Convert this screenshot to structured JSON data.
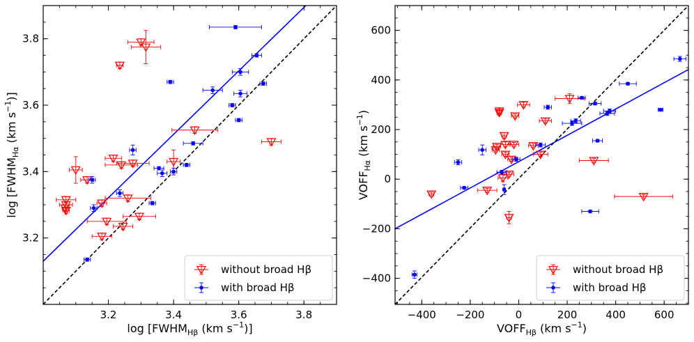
{
  "chart_data": [
    {
      "type": "scatter",
      "xlabel_prefix": "log [FWHM",
      "xlabel_sub": "Hβ",
      "xlabel_suffix": " (km s",
      "xlabel_sup": "−1",
      "xlabel_end": ")]",
      "ylabel_prefix": "log [FWHM",
      "ylabel_sub": "Hα",
      "ylabel_suffix": " (km s",
      "ylabel_sup": "−1",
      "ylabel_end": ")]",
      "xlim": [
        3.0,
        3.9
      ],
      "ylim": [
        3.0,
        3.9
      ],
      "xticks": [
        3.2,
        3.4,
        3.6,
        3.8
      ],
      "yticks": [
        3.2,
        3.4,
        3.6,
        3.8
      ],
      "xticklabels": [
        "3.2",
        "3.4",
        "3.6",
        "3.8"
      ],
      "yticklabels": [
        "3.2",
        "3.4",
        "3.6",
        "3.8"
      ],
      "legend_position": "bottom-right",
      "series": [
        {
          "name": "without broad Hβ",
          "label_text": "without broad H",
          "label_greek": "β",
          "color": "#ff0000",
          "marker": "triangle-down-open",
          "points": [
            {
              "x": 3.07,
              "y": 3.315,
              "xerr": 0.03,
              "yerr": 0.01
            },
            {
              "x": 3.07,
              "y": 3.3,
              "xerr": 0.02,
              "yerr": 0.01
            },
            {
              "x": 3.068,
              "y": 3.29,
              "xerr": 0.01,
              "yerr": 0.01
            },
            {
              "x": 3.07,
              "y": 3.283,
              "xerr": 0.01,
              "yerr": 0.01
            },
            {
              "x": 3.1,
              "y": 3.405,
              "xerr": 0.02,
              "yerr": 0.04
            },
            {
              "x": 3.135,
              "y": 3.375,
              "xerr": 0.02,
              "yerr": 0.01
            },
            {
              "x": 3.18,
              "y": 3.305,
              "xerr": 0.015,
              "yerr": 0.01
            },
            {
              "x": 3.18,
              "y": 3.205,
              "xerr": 0.03,
              "yerr": 0.01
            },
            {
              "x": 3.195,
              "y": 3.25,
              "xerr": 0.06,
              "yerr": 0.01
            },
            {
              "x": 3.215,
              "y": 3.44,
              "xerr": 0.025,
              "yerr": 0.01
            },
            {
              "x": 3.24,
              "y": 3.42,
              "xerr": 0.05,
              "yerr": 0.01
            },
            {
              "x": 3.245,
              "y": 3.235,
              "xerr": 0.03,
              "yerr": 0.01
            },
            {
              "x": 3.235,
              "y": 3.72,
              "xerr": 0.01,
              "yerr": 0.01
            },
            {
              "x": 3.26,
              "y": 3.32,
              "xerr": 0.07,
              "yerr": 0.01
            },
            {
              "x": 3.275,
              "y": 3.425,
              "xerr": 0.05,
              "yerr": 0.01
            },
            {
              "x": 3.295,
              "y": 3.265,
              "xerr": 0.05,
              "yerr": 0.01
            },
            {
              "x": 3.3,
              "y": 3.79,
              "xerr": 0.04,
              "yerr": 0.01
            },
            {
              "x": 3.315,
              "y": 3.775,
              "xerr": 0.045,
              "yerr": 0.05
            },
            {
              "x": 3.4,
              "y": 3.43,
              "xerr": 0.02,
              "yerr": 0.035
            },
            {
              "x": 3.465,
              "y": 3.525,
              "xerr": 0.07,
              "yerr": 0.01
            },
            {
              "x": 3.7,
              "y": 3.49,
              "xerr": 0.03,
              "yerr": 0.01
            }
          ]
        },
        {
          "name": "with broad Hβ",
          "label_text": "with broad H",
          "label_greek": "β",
          "color": "#0000ff",
          "marker": "circle",
          "points": [
            {
              "x": 3.135,
              "y": 3.135,
              "xerr": 0.01,
              "yerr": 0.005
            },
            {
              "x": 3.15,
              "y": 3.375,
              "xerr": 0.01,
              "yerr": 0.01
            },
            {
              "x": 3.155,
              "y": 3.29,
              "xerr": 0.01,
              "yerr": 0.01
            },
            {
              "x": 3.235,
              "y": 3.335,
              "xerr": 0.01,
              "yerr": 0.01
            },
            {
              "x": 3.275,
              "y": 3.465,
              "xerr": 0.01,
              "yerr": 0.015
            },
            {
              "x": 3.335,
              "y": 3.305,
              "xerr": 0.01,
              "yerr": 0.005
            },
            {
              "x": 3.355,
              "y": 3.41,
              "xerr": 0.015,
              "yerr": 0.005
            },
            {
              "x": 3.365,
              "y": 3.395,
              "xerr": 0.015,
              "yerr": 0.01
            },
            {
              "x": 3.39,
              "y": 3.67,
              "xerr": 0.01,
              "yerr": 0.005
            },
            {
              "x": 3.4,
              "y": 3.4,
              "xerr": 0.01,
              "yerr": 0.01
            },
            {
              "x": 3.44,
              "y": 3.42,
              "xerr": 0.01,
              "yerr": 0.005
            },
            {
              "x": 3.46,
              "y": 3.485,
              "xerr": 0.03,
              "yerr": 0.005
            },
            {
              "x": 3.52,
              "y": 3.645,
              "xerr": 0.03,
              "yerr": 0.01
            },
            {
              "x": 3.58,
              "y": 3.6,
              "xerr": 0.01,
              "yerr": 0.005
            },
            {
              "x": 3.59,
              "y": 3.835,
              "xerr": 0.08,
              "yerr": 0.005
            },
            {
              "x": 3.6,
              "y": 3.555,
              "xerr": 0.01,
              "yerr": 0.005
            },
            {
              "x": 3.605,
              "y": 3.635,
              "xerr": 0.02,
              "yerr": 0.01
            },
            {
              "x": 3.605,
              "y": 3.7,
              "xerr": 0.025,
              "yerr": 0.01
            },
            {
              "x": 3.655,
              "y": 3.75,
              "xerr": 0.015,
              "yerr": 0.005
            },
            {
              "x": 3.675,
              "y": 3.665,
              "xerr": 0.01,
              "yerr": 0.005
            }
          ]
        }
      ],
      "lines": [
        {
          "name": "best-fit",
          "color": "#0000ff",
          "style": "solid",
          "from": [
            3.0,
            3.13
          ],
          "to": [
            3.9,
            3.99
          ]
        },
        {
          "name": "one-to-one",
          "color": "#000000",
          "style": "dashed",
          "from": [
            3.0,
            3.0
          ],
          "to": [
            3.9,
            3.9
          ]
        }
      ]
    },
    {
      "type": "scatter",
      "xlabel_prefix": "VOFF",
      "xlabel_sub": "Hβ",
      "xlabel_suffix": " (km s",
      "xlabel_sup": "−1",
      "xlabel_end": ")",
      "ylabel_prefix": "VOFF",
      "ylabel_sub": "Hα",
      "ylabel_suffix": " (km s",
      "ylabel_sup": "−1",
      "ylabel_end": ")",
      "xlim": [
        -510,
        700
      ],
      "ylim": [
        -505,
        700
      ],
      "xticks": [
        -400,
        -200,
        0,
        200,
        400,
        600
      ],
      "yticks": [
        -400,
        -200,
        0,
        200,
        400,
        600
      ],
      "xticklabels": [
        "−400",
        "−200",
        "0",
        "200",
        "400",
        "600"
      ],
      "yticklabels": [
        "−400",
        "−200",
        "0",
        "200",
        "400",
        "600"
      ],
      "legend_position": "bottom-right",
      "series": [
        {
          "name": "without broad Hβ",
          "label_text": "without broad H",
          "label_greek": "β",
          "color": "#ff0000",
          "marker": "triangle-down-open",
          "points": [
            {
              "x": -360,
              "y": -60,
              "xerr": 10,
              "yerr": 8
            },
            {
              "x": -130,
              "y": -45,
              "xerr": 40,
              "yerr": 8
            },
            {
              "x": -95,
              "y": 118,
              "xerr": 15,
              "yerr": 8
            },
            {
              "x": -90,
              "y": 132,
              "xerr": 15,
              "yerr": 8
            },
            {
              "x": -80,
              "y": 268,
              "xerr": 10,
              "yerr": 10
            },
            {
              "x": -80,
              "y": 275,
              "xerr": 10,
              "yerr": 10
            },
            {
              "x": -65,
              "y": 5,
              "xerr": 20,
              "yerr": 15
            },
            {
              "x": -60,
              "y": 175,
              "xerr": 10,
              "yerr": 12
            },
            {
              "x": -55,
              "y": 140,
              "xerr": 20,
              "yerr": 10
            },
            {
              "x": -55,
              "y": 100,
              "xerr": 15,
              "yerr": 8
            },
            {
              "x": -40,
              "y": 20,
              "xerr": 20,
              "yerr": 8
            },
            {
              "x": -40,
              "y": -155,
              "xerr": 10,
              "yerr": 25
            },
            {
              "x": -30,
              "y": 80,
              "xerr": 15,
              "yerr": 8
            },
            {
              "x": -20,
              "y": 140,
              "xerr": 20,
              "yerr": 8
            },
            {
              "x": -15,
              "y": 255,
              "xerr": 15,
              "yerr": 8
            },
            {
              "x": 20,
              "y": 300,
              "xerr": 25,
              "yerr": 10
            },
            {
              "x": 60,
              "y": 135,
              "xerr": 20,
              "yerr": 8
            },
            {
              "x": 90,
              "y": 100,
              "xerr": 30,
              "yerr": 8
            },
            {
              "x": 110,
              "y": 235,
              "xerr": 25,
              "yerr": 8
            },
            {
              "x": 210,
              "y": 325,
              "xerr": 60,
              "yerr": 20
            },
            {
              "x": 310,
              "y": 75,
              "xerr": 60,
              "yerr": 8
            },
            {
              "x": 515,
              "y": -70,
              "xerr": 120,
              "yerr": 8
            }
          ]
        },
        {
          "name": "with broad Hβ",
          "label_text": "with broad H",
          "label_greek": "β",
          "color": "#0000ff",
          "marker": "circle",
          "points": [
            {
              "x": -430,
              "y": -385,
              "xerr": 10,
              "yerr": 15
            },
            {
              "x": -250,
              "y": 68,
              "xerr": 15,
              "yerr": 10
            },
            {
              "x": -225,
              "y": -35,
              "xerr": 15,
              "yerr": 5
            },
            {
              "x": -150,
              "y": 118,
              "xerr": 15,
              "yerr": 20
            },
            {
              "x": -70,
              "y": 28,
              "xerr": 20,
              "yerr": 8
            },
            {
              "x": -60,
              "y": -42,
              "xerr": 5,
              "yerr": 20
            },
            {
              "x": -10,
              "y": 80,
              "xerr": 15,
              "yerr": 8
            },
            {
              "x": 90,
              "y": 138,
              "xerr": 20,
              "yerr": 8
            },
            {
              "x": 120,
              "y": 290,
              "xerr": 15,
              "yerr": 8
            },
            {
              "x": 220,
              "y": 225,
              "xerr": 40,
              "yerr": 8
            },
            {
              "x": 235,
              "y": 235,
              "xerr": 20,
              "yerr": 8
            },
            {
              "x": 260,
              "y": 328,
              "xerr": 15,
              "yerr": 5
            },
            {
              "x": 295,
              "y": -130,
              "xerr": 35,
              "yerr": 5
            },
            {
              "x": 325,
              "y": 155,
              "xerr": 20,
              "yerr": 5
            },
            {
              "x": 315,
              "y": 305,
              "xerr": 25,
              "yerr": 5
            },
            {
              "x": 365,
              "y": 265,
              "xerr": 30,
              "yerr": 8
            },
            {
              "x": 375,
              "y": 275,
              "xerr": 25,
              "yerr": 8
            },
            {
              "x": 450,
              "y": 385,
              "xerr": 35,
              "yerr": 5
            },
            {
              "x": 585,
              "y": 280,
              "xerr": 10,
              "yerr": 5
            },
            {
              "x": 665,
              "y": 485,
              "xerr": 25,
              "yerr": 10
            }
          ]
        }
      ],
      "lines": [
        {
          "name": "best-fit",
          "color": "#0000ff",
          "style": "solid",
          "from": [
            -510,
            -200
          ],
          "to": [
            700,
            442
          ]
        },
        {
          "name": "one-to-one",
          "color": "#000000",
          "style": "dashed",
          "from": [
            -510,
            -505
          ],
          "to": [
            700,
            700
          ]
        }
      ]
    }
  ]
}
